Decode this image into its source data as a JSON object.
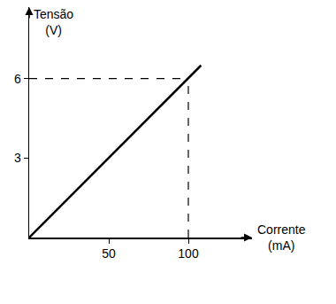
{
  "chart_data": {
    "type": "line",
    "x_label": "Corrente (mA)",
    "y_label": "Tensão (V)",
    "x": [
      0,
      100,
      108
    ],
    "values": [
      0,
      6,
      6.5
    ],
    "color": "#000000",
    "xlim": [
      0,
      140
    ],
    "xticks": [
      50,
      100
    ],
    "ylim": [
      0,
      8.7
    ],
    "yticks": [
      3,
      6
    ],
    "grid": false
  }
}
